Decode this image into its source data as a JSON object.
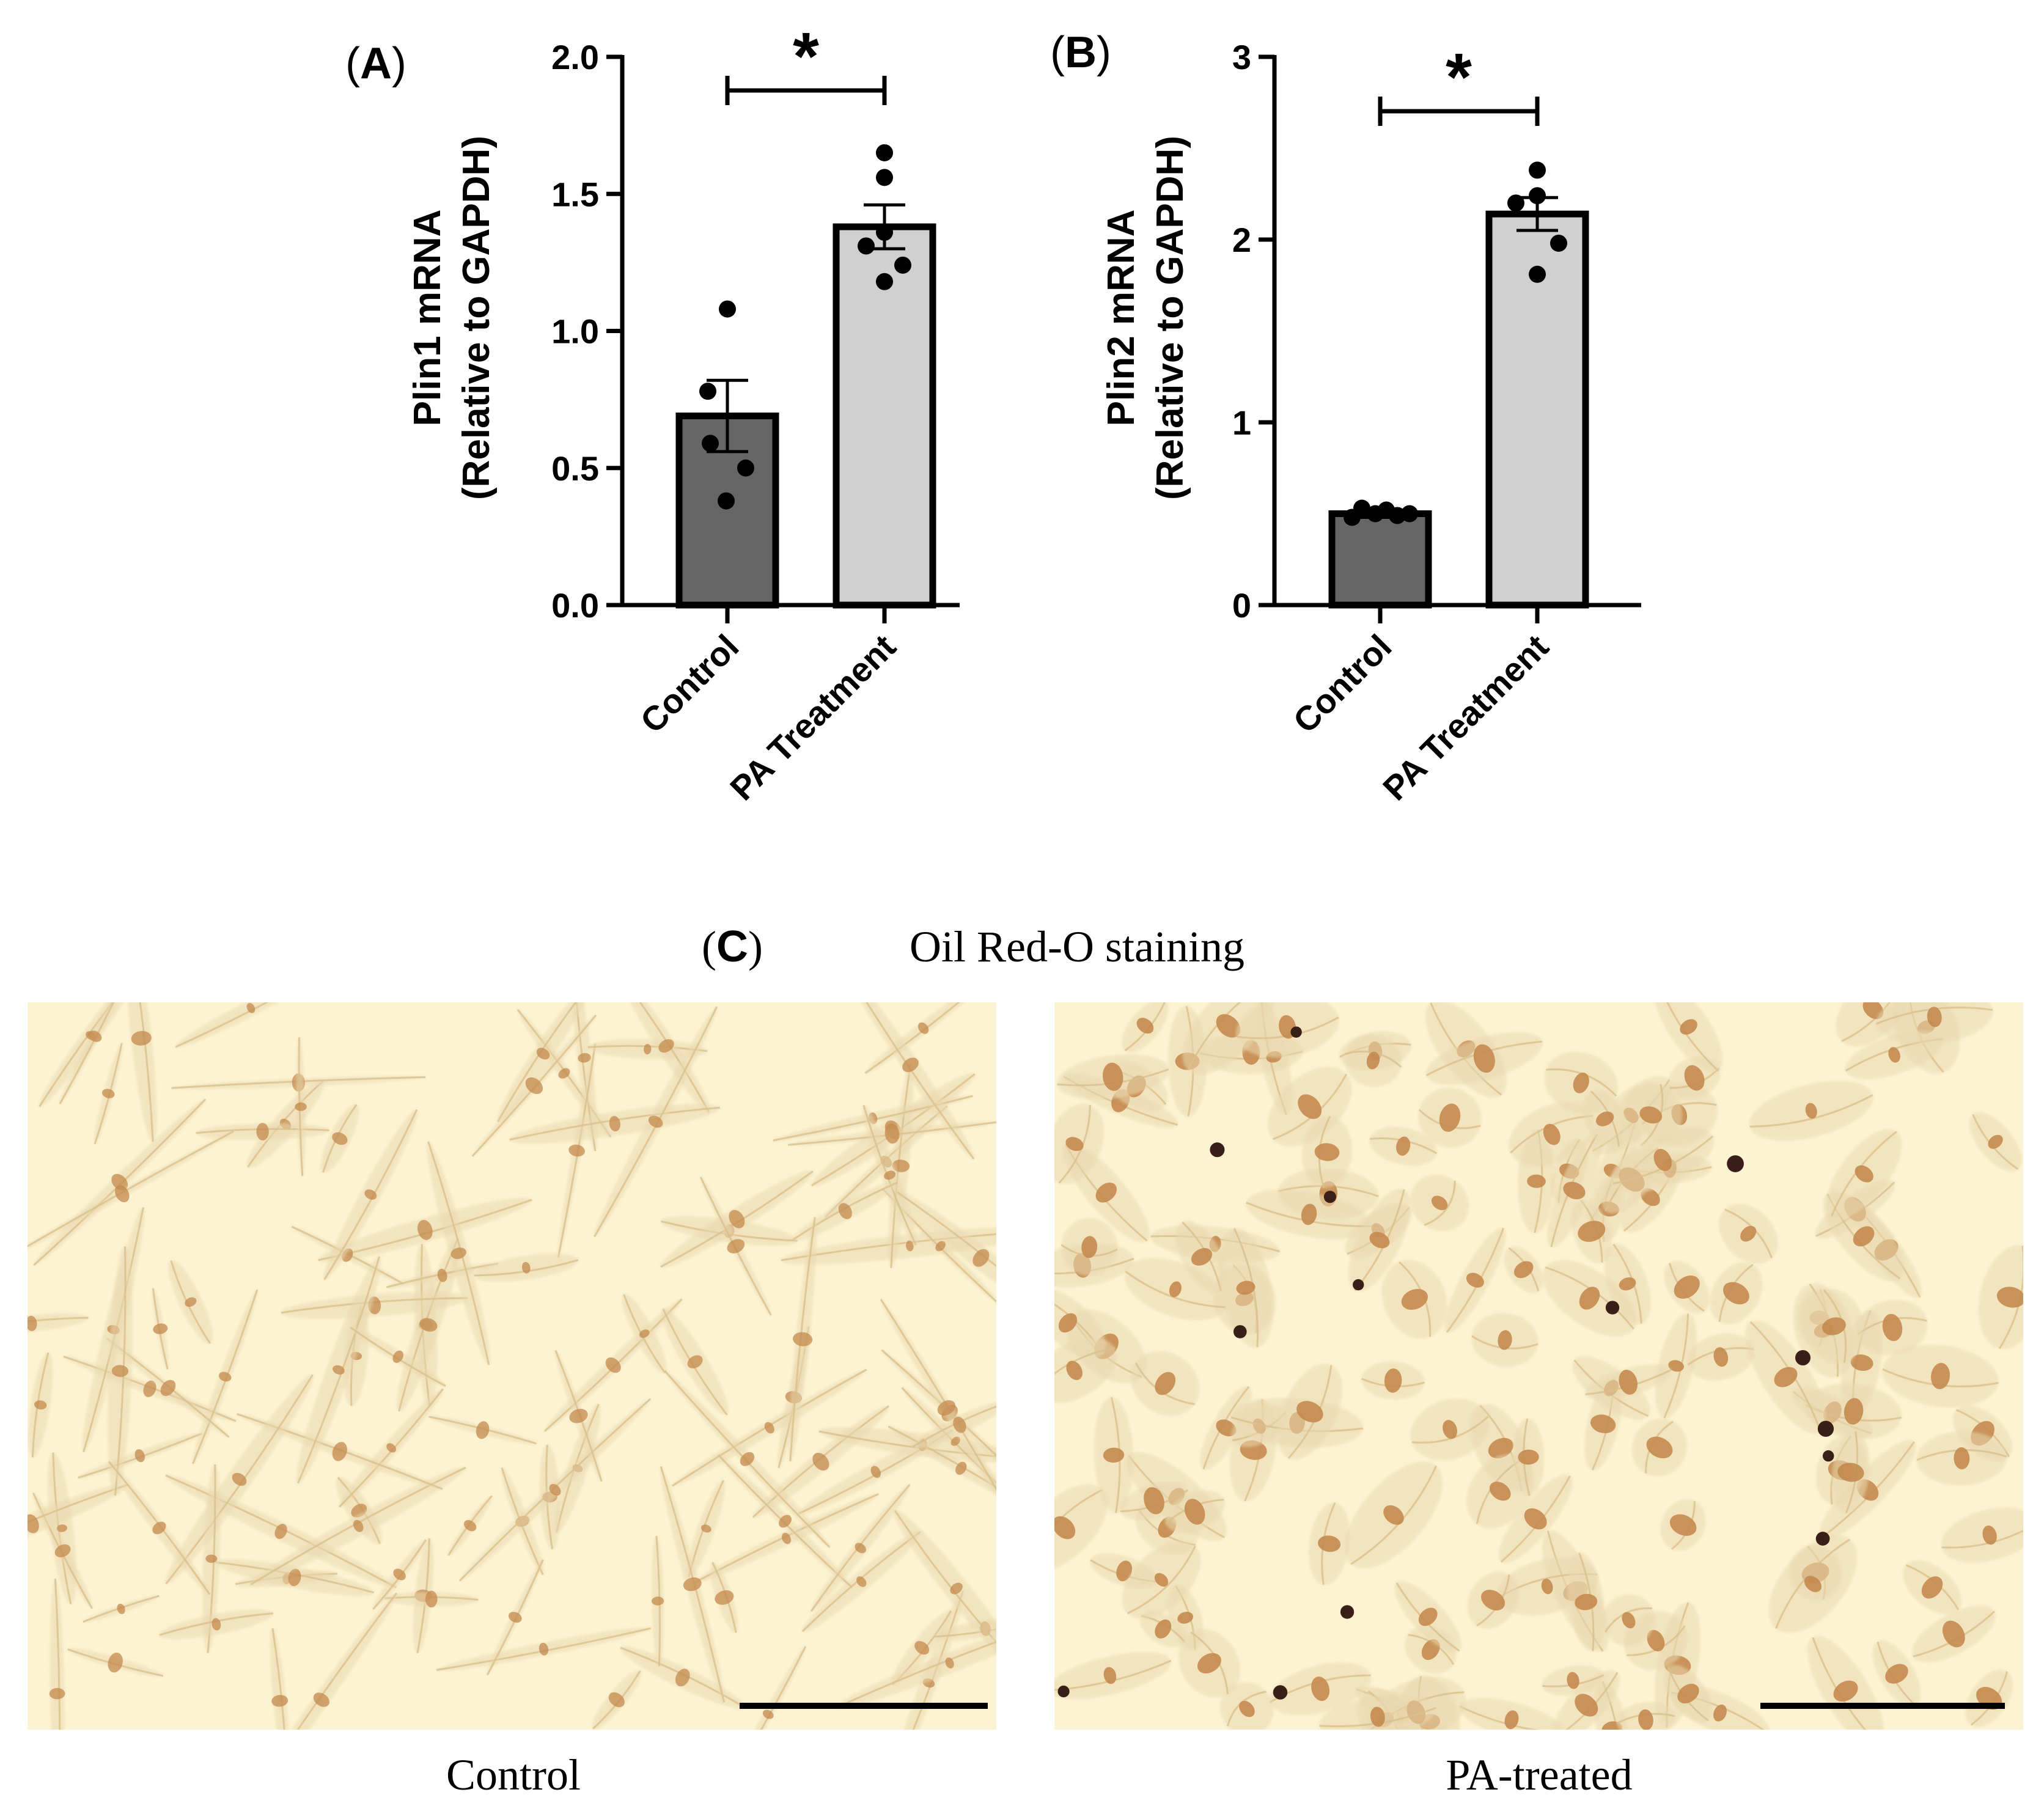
{
  "chart_data": [
    {
      "type": "bar",
      "panel": "A",
      "categories": [
        "Control",
        "PA Treatment"
      ],
      "values": [
        0.69,
        1.38
      ],
      "error": [
        0.13,
        0.08
      ],
      "points": [
        [
          1.08,
          0.78,
          0.59,
          0.5,
          0.38
        ],
        [
          1.65,
          1.56,
          1.36,
          1.31,
          1.24,
          1.18
        ]
      ],
      "ylabel_line1": "Plin1 mRNA",
      "ylabel_line2": "(Relative to GAPDH)",
      "ylim": [
        0,
        2.0
      ],
      "yticks": [
        "0.0",
        "0.5",
        "1.0",
        "1.5",
        "2.0"
      ],
      "significance": "*",
      "bar_colors": [
        "#666666",
        "#d0d0d0"
      ]
    },
    {
      "type": "bar",
      "panel": "B",
      "categories": [
        "Control",
        "PA Treatment"
      ],
      "values": [
        0.5,
        2.14
      ],
      "error": [
        0.02,
        0.09
      ],
      "points": [
        [
          0.53,
          0.52,
          0.5,
          0.5,
          0.49,
          0.48
        ],
        [
          2.38,
          2.24,
          2.2,
          1.98,
          1.81
        ]
      ],
      "ylabel_line1": "Plin2 mRNA",
      "ylabel_line2": "(Relative to GAPDH)",
      "ylim": [
        0,
        3
      ],
      "yticks": [
        "0",
        "1",
        "2",
        "3"
      ],
      "significance": "*",
      "bar_colors": [
        "#666666",
        "#d0d0d0"
      ]
    }
  ],
  "panel_c": {
    "letter": "C",
    "title": "Oil Red-O staining",
    "left_caption": "Control",
    "right_caption": "PA-treated",
    "background_color": "#fcf3d2",
    "cell_color": "#c48a4e",
    "droplet_color": "#3a1f18"
  }
}
